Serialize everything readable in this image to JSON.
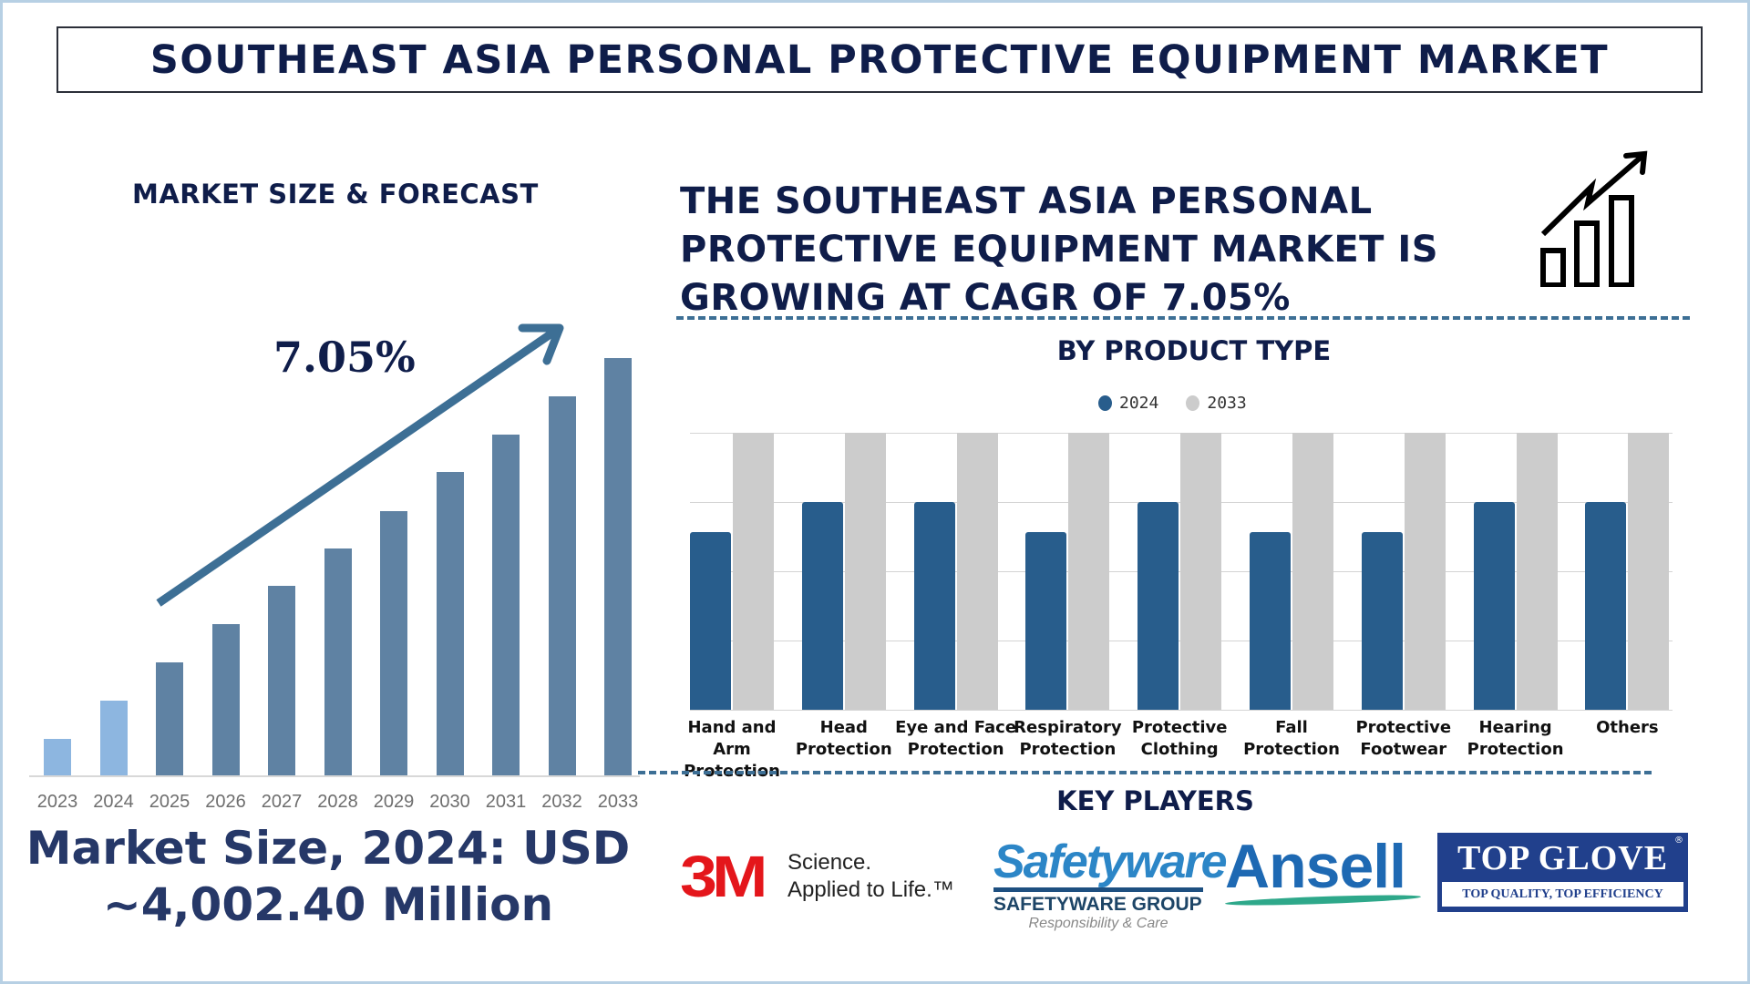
{
  "header": {
    "title": "SOUTHEAST ASIA PERSONAL PROTECTIVE EQUIPMENT MARKET"
  },
  "market_forecast": {
    "title": "MARKET SIZE & FORECAST",
    "cagr_label": "7.05%",
    "market_size_line1": "Market Size, 2024: USD",
    "market_size_line2": "~4,002.40 Million"
  },
  "headline": {
    "text": "THE SOUTHEAST ASIA PERSONAL PROTECTIVE EQUIPMENT MARKET IS GROWING AT CAGR OF 7.05%",
    "icon": "growth-chart-icon"
  },
  "product_type": {
    "title": "BY PRODUCT TYPE",
    "legend": [
      {
        "label": "2024",
        "color": "#285d8c"
      },
      {
        "label": "2033",
        "color": "#cccccc"
      }
    ]
  },
  "key_players": {
    "title": "KEY PLAYERS",
    "logos": [
      {
        "name": "3M",
        "mark": "3M",
        "tagline_line1": "Science.",
        "tagline_line2": "Applied to Life.™"
      },
      {
        "name": "Safetyware",
        "mark": "Safetyware",
        "group": "SAFETYWARE GROUP",
        "tagline": "Responsibility & Care"
      },
      {
        "name": "Ansell",
        "mark": "Ansell"
      },
      {
        "name": "Top Glove",
        "mark": "TOP GLOVE",
        "tagline": "TOP QUALITY, TOP EFFICIENCY",
        "registered": "®"
      }
    ]
  },
  "colors": {
    "title_navy": "#0f1d4a",
    "market_size_navy": "#263868",
    "historic_bar": "#8db6e0",
    "forecast_bar": "#5f82a3",
    "arrow": "#3d6f95",
    "series_2024": "#285d8c",
    "series_2033": "#cccccc",
    "frame": "#b7d0e4"
  },
  "chart_data": [
    {
      "type": "bar",
      "title": "MARKET SIZE & FORECAST",
      "categories": [
        "2023",
        "2024",
        "2025",
        "2026",
        "2027",
        "2028",
        "2029",
        "2030",
        "2031",
        "2032",
        "2033"
      ],
      "values": [
        1.0,
        2.03,
        3.07,
        4.1,
        5.13,
        6.15,
        7.18,
        8.22,
        9.25,
        10.27,
        11.32
      ],
      "value_note": "relative bar heights (no y-axis shown); 2023-2024 historic, 2025-2033 forecast",
      "annotation": "7.05% CAGR arrow",
      "xlabel": "",
      "ylabel": "",
      "grid": false
    },
    {
      "type": "bar",
      "title": "BY PRODUCT TYPE",
      "categories": [
        "Hand and Arm Protection",
        "Head Protection",
        "Eye and Face Protection",
        "Respiratory Protection",
        "Protective Clothing",
        "Fall Protection",
        "Protective Footwear",
        "Hearing Protection",
        "Others"
      ],
      "series": [
        {
          "name": "2024",
          "values": [
            64,
            75,
            75,
            64,
            75,
            64,
            64,
            75,
            75
          ]
        },
        {
          "name": "2033",
          "values": [
            100,
            100,
            100,
            100,
            100,
            100,
            100,
            100,
            100
          ]
        }
      ],
      "value_note": "relative % of plot height (no y-axis labels shown)",
      "ylim": [
        0,
        100
      ],
      "grid": true,
      "legend_position": "top"
    }
  ]
}
